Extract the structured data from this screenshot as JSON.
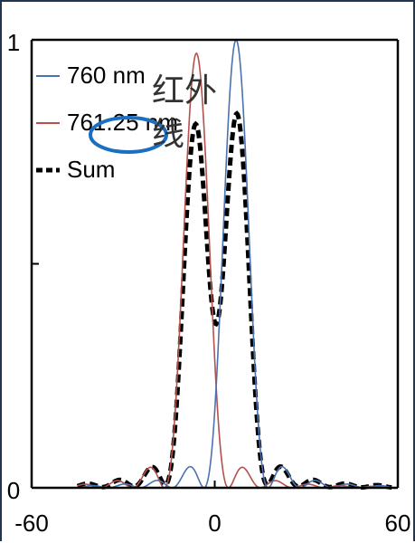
{
  "chart_data": {
    "type": "line",
    "title": "",
    "xlabel": "",
    "ylabel": "",
    "xlim": [
      -60,
      60
    ],
    "ylim": [
      0,
      1
    ],
    "x_ticks": [
      {
        "value": -60,
        "label": "-60"
      },
      {
        "value": 0,
        "label": "0"
      },
      {
        "value": 60,
        "label": "60"
      }
    ],
    "y_ticks": [
      {
        "value": 0,
        "label": "0"
      },
      {
        "value": 0.5,
        "label": ""
      },
      {
        "value": 1,
        "label": "1"
      }
    ],
    "grid": false,
    "legend": "top-left",
    "series": [
      {
        "name": "760 nm",
        "color": "#4a72b0",
        "style": "solid",
        "center": 7,
        "peak": 1.0
      },
      {
        "name": "761.25 nm",
        "color": "#b5504a",
        "style": "solid",
        "center": -6,
        "peak": 0.97
      },
      {
        "name": "Sum",
        "color": "#000000",
        "style": "dashed"
      }
    ],
    "annotation": {
      "text_line1": "红外",
      "text_line2": "线",
      "ellipse_color": "#1a6fc0",
      "text_color": "#333333"
    }
  }
}
